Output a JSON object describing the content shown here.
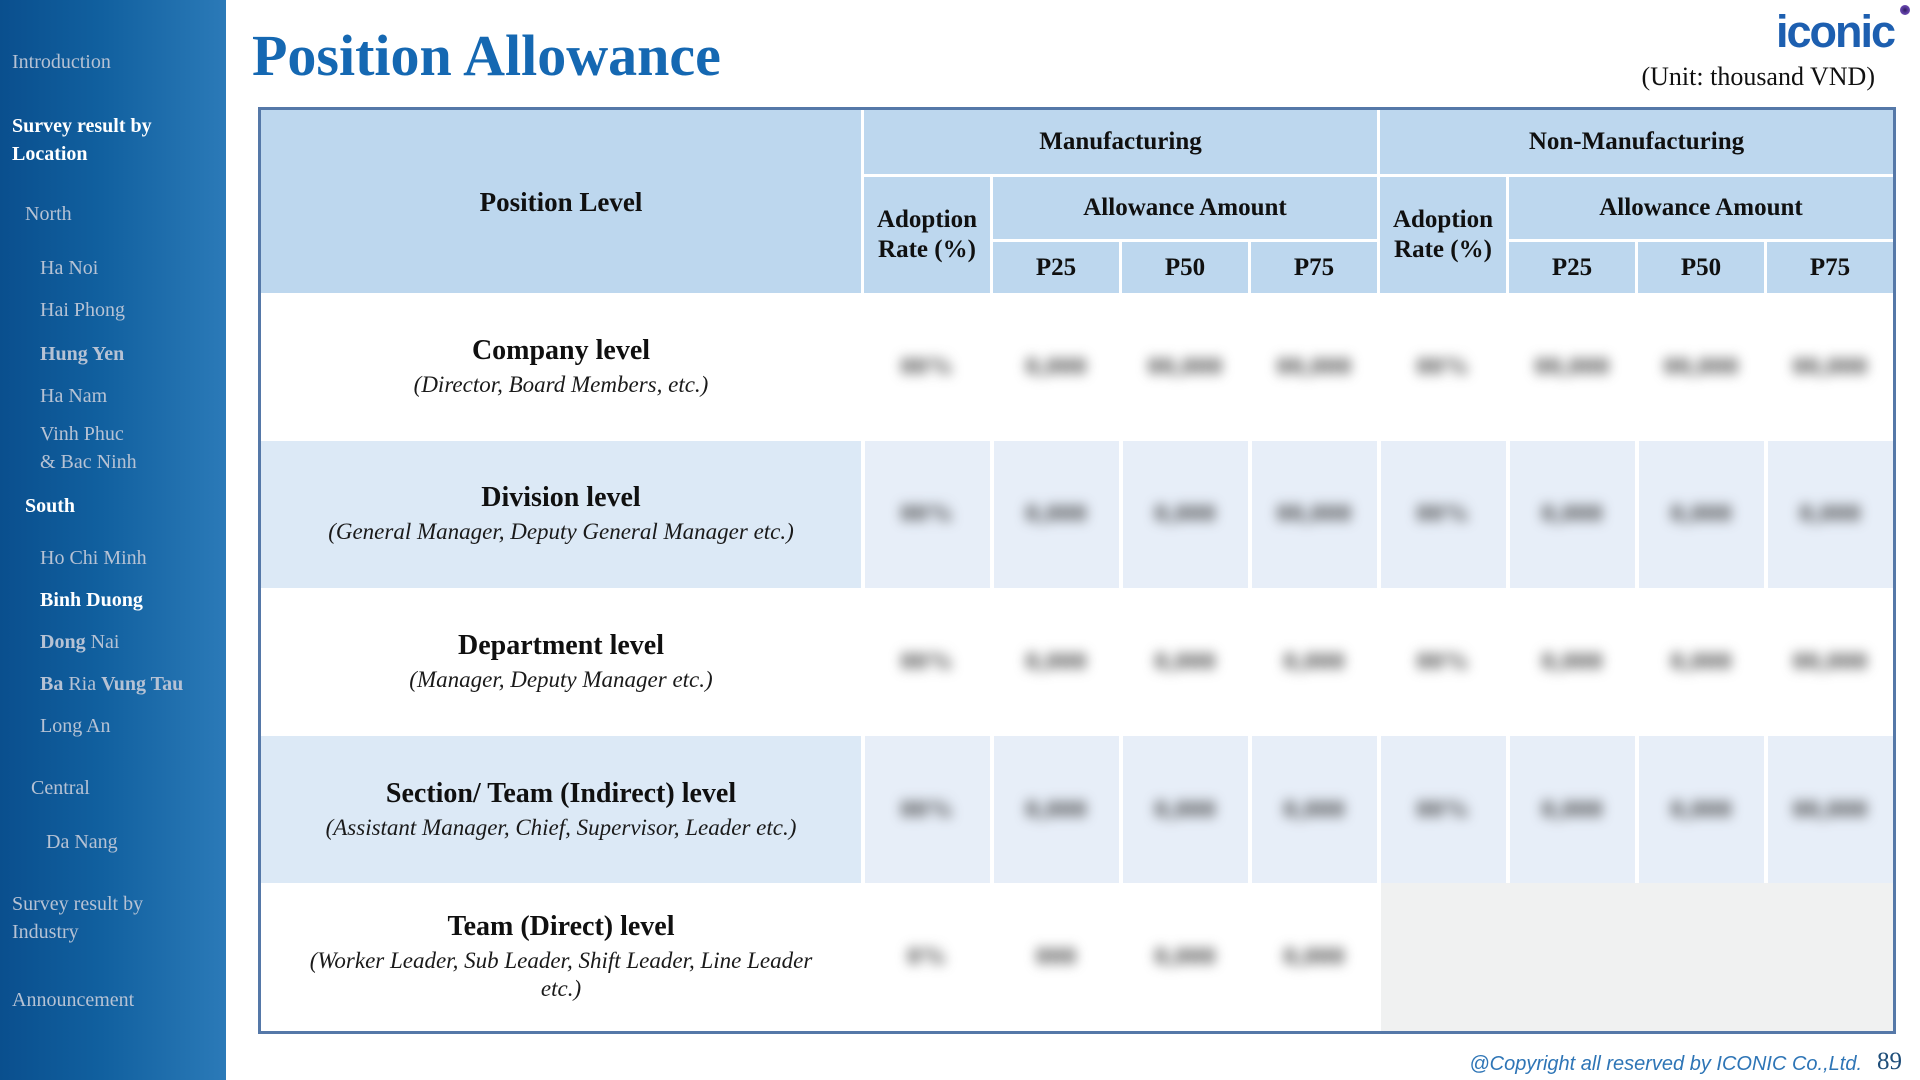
{
  "slide": {
    "title": "Position Allowance",
    "unit_note": "(Unit: thousand VND)",
    "logo_text": "iconic",
    "copyright": "@Copyright all reserved by ICONIC Co.,Ltd.",
    "page_number": "89"
  },
  "colors": {
    "accent_blue": "#1568b2",
    "sidebar_gradient_left": "#0a4f8e",
    "sidebar_gradient_right": "#2b7ab8",
    "table_header_fill": "#bdd7ee",
    "table_shaded_row": "#dce9f6",
    "table_border": "#5578a8",
    "empty_block": "#f0f1f1"
  },
  "sidebar": {
    "items": [
      {
        "name": "introduction",
        "level": 0,
        "style": "muted",
        "text": "Introduction"
      },
      {
        "name": "survey-result-by-location",
        "level": 0,
        "style": "white-bold",
        "text": "Survey result by\nLocation"
      },
      {
        "name": "north",
        "level": 1,
        "style": "muted",
        "text": "North"
      },
      {
        "name": "ha-noi",
        "level": 2,
        "style": "muted",
        "text": "Ha Noi"
      },
      {
        "name": "hai-phong",
        "level": 2,
        "style": "muted",
        "text": "Hai Phong"
      },
      {
        "name": "hung-yen",
        "level": 2,
        "style": "muted-bold",
        "text": "Hung Yen"
      },
      {
        "name": "ha-nam",
        "level": 2,
        "style": "muted",
        "text": "Ha Nam"
      },
      {
        "name": "vinh-phuc-bac-ninh",
        "level": 2,
        "style": "muted",
        "text": "Vinh Phuc\n& Bac Ninh"
      },
      {
        "name": "south",
        "level": 1,
        "style": "white-bold",
        "text": "South"
      },
      {
        "name": "ho-chi-minh",
        "level": 2,
        "style": "muted",
        "text": "Ho Chi Minh"
      },
      {
        "name": "binh-duong",
        "level": 2,
        "style": "white-bold",
        "text": "Binh Duong"
      },
      {
        "name": "dong-nai",
        "level": 2,
        "style": "muted",
        "segments": [
          {
            "text": "Dong",
            "bold": true
          },
          {
            "text": " Nai",
            "bold": false
          }
        ]
      },
      {
        "name": "ba-ria-vung-tau",
        "level": 2,
        "style": "muted",
        "segments": [
          {
            "text": "Ba",
            "bold": true
          },
          {
            "text": " Ria ",
            "bold": false
          },
          {
            "text": "Vung Tau",
            "bold": true
          }
        ]
      },
      {
        "name": "long-an",
        "level": 2,
        "style": "muted",
        "text": "Long An"
      },
      {
        "name": "central",
        "level": 1,
        "style": "muted",
        "text": "Central",
        "variant": "b"
      },
      {
        "name": "da-nang",
        "level": 2,
        "style": "muted",
        "text": "Da Nang",
        "variant": "b"
      },
      {
        "name": "survey-result-by-industry",
        "level": 0,
        "style": "muted",
        "text": "Survey result by\nIndustry"
      },
      {
        "name": "announcement",
        "level": 0,
        "style": "muted",
        "text": "Announcement"
      }
    ]
  },
  "table": {
    "position_header": "Position Level",
    "groups": [
      "Manufacturing",
      "Non-Manufacturing"
    ],
    "adoption_header": "Adoption Rate (%)",
    "allowance_header": "Allowance Amount",
    "percentiles": [
      "P25",
      "P50",
      "P75"
    ],
    "values_redacted": true,
    "redaction_note": "numeric cell values are blurred/illegible in the source image; placeholder digits below are rendered blurred",
    "rows": [
      {
        "level": "Company level",
        "description": "(Director, Board Members, etc.)",
        "shaded": false,
        "manufacturing": [
          "00%",
          "0,000",
          "00,000",
          "00,000"
        ],
        "non_manufacturing": [
          "00%",
          "00,000",
          "00,000",
          "00,000"
        ]
      },
      {
        "level": "Division level",
        "description": "(General Manager, Deputy General Manager etc.)",
        "shaded": true,
        "manufacturing": [
          "00%",
          "0,000",
          "0,000",
          "00,000"
        ],
        "non_manufacturing": [
          "00%",
          "0,000",
          "0,000",
          "0,000"
        ]
      },
      {
        "level": "Department level",
        "description": "(Manager, Deputy Manager etc.)",
        "shaded": false,
        "manufacturing": [
          "00%",
          "0,000",
          "0,000",
          "0,000"
        ],
        "non_manufacturing": [
          "00%",
          "0,000",
          "0,000",
          "00,000"
        ]
      },
      {
        "level": "Section/ Team (Indirect) level",
        "description": "(Assistant Manager, Chief, Supervisor, Leader etc.)",
        "shaded": true,
        "manufacturing": [
          "00%",
          "0,000",
          "0,000",
          "0,000"
        ],
        "non_manufacturing": [
          "00%",
          "0,000",
          "0,000",
          "00,000"
        ]
      },
      {
        "level": "Team (Direct) level",
        "description": "(Worker Leader, Sub Leader, Shift Leader, Line Leader etc.)",
        "shaded": false,
        "manufacturing": [
          "0%",
          "000",
          "0,000",
          "0,000"
        ],
        "non_manufacturing": null
      }
    ]
  }
}
